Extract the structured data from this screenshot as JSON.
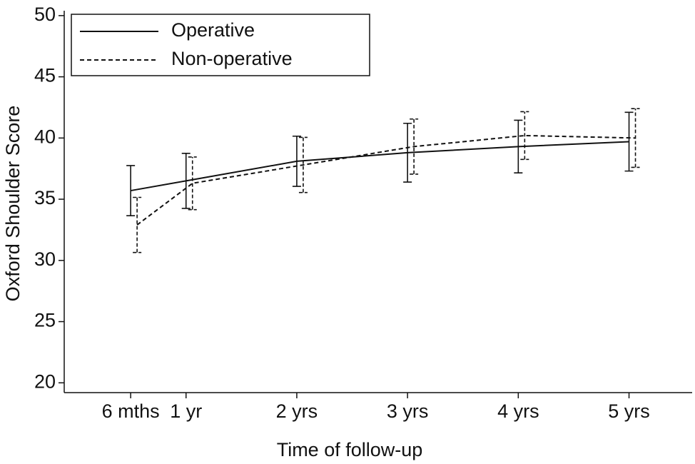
{
  "chart_data": {
    "type": "line",
    "x_label": "Time of follow-up",
    "y_label": "Oxford Shoulder Score",
    "x": [
      0.5,
      1,
      2,
      3,
      4,
      5
    ],
    "xlim": [
      -0.1,
      5.57
    ],
    "xticks": [
      {
        "value": 0.5,
        "label": "6 mths"
      },
      {
        "value": 1,
        "label": "1 yr"
      },
      {
        "value": 2,
        "label": "2 yrs"
      },
      {
        "value": 3,
        "label": "3 yrs"
      },
      {
        "value": 4,
        "label": "4 yrs"
      },
      {
        "value": 5,
        "label": "5 yrs"
      }
    ],
    "ylim": [
      19.2,
      50.4
    ],
    "yticks": [
      20,
      25,
      30,
      35,
      40,
      45,
      50
    ],
    "legend": "upper left",
    "series": [
      {
        "name": "Operative",
        "color": "#111111",
        "dashed": false,
        "values": [
          35.7,
          36.5,
          38.1,
          38.8,
          39.3,
          39.7
        ],
        "errors": [
          2.05,
          2.25,
          2.05,
          2.4,
          2.15,
          2.4
        ]
      },
      {
        "name": "Non-operative",
        "color": "#111111",
        "dashed": true,
        "values": [
          32.9,
          36.3,
          37.8,
          39.3,
          40.2,
          40.0
        ],
        "errors": [
          2.25,
          2.15,
          2.25,
          2.25,
          1.95,
          2.4
        ]
      }
    ]
  }
}
